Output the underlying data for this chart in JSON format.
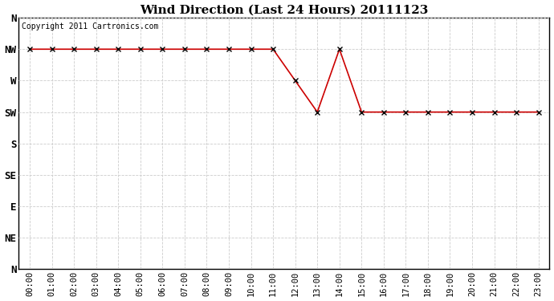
{
  "title": "Wind Direction (Last 24 Hours) 20111123",
  "copyright_text": "Copyright 2011 Cartronics.com",
  "x_labels": [
    "00:00",
    "01:00",
    "02:00",
    "03:00",
    "04:00",
    "05:00",
    "06:00",
    "07:00",
    "08:00",
    "09:00",
    "10:00",
    "11:00",
    "12:00",
    "13:00",
    "14:00",
    "15:00",
    "16:00",
    "17:00",
    "18:00",
    "19:00",
    "20:00",
    "21:00",
    "22:00",
    "23:00"
  ],
  "y_labels_top_to_bottom": [
    "N",
    "NW",
    "W",
    "SW",
    "S",
    "SE",
    "E",
    "NE",
    "N"
  ],
  "wind_data": [
    7,
    7,
    7,
    7,
    7,
    7,
    7,
    7,
    7,
    7,
    7,
    7,
    6,
    5,
    7,
    5,
    5,
    5,
    5,
    5,
    5,
    5,
    5,
    5
  ],
  "line_color": "#cc0000",
  "marker": "x",
  "marker_color": "#000000",
  "marker_size": 4,
  "line_width": 1.2,
  "background_color": "#ffffff",
  "grid_color": "#cccccc",
  "title_fontsize": 11,
  "axis_label_fontsize": 7.5,
  "copyright_fontsize": 7,
  "fig_width": 6.9,
  "fig_height": 3.75,
  "dpi": 100
}
